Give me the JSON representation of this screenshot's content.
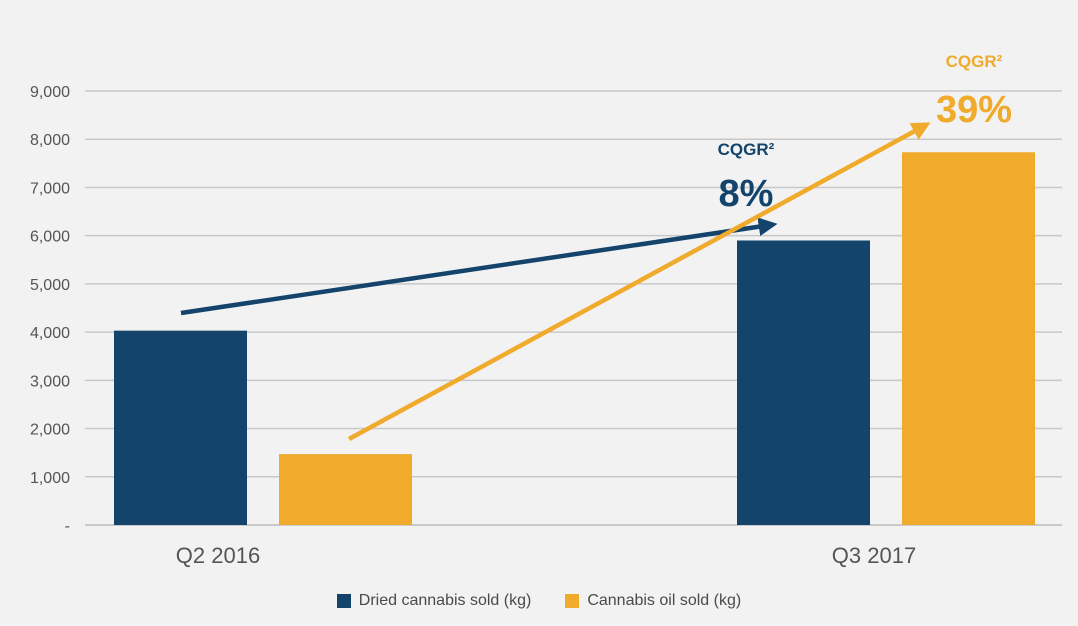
{
  "chart_data": {
    "type": "bar",
    "categories": [
      "Q2 2016",
      "Q3 2017"
    ],
    "series": [
      {
        "name": "Dried cannabis sold (kg)",
        "values": [
          4030,
          5900
        ],
        "color": "#14446b"
      },
      {
        "name": "Cannabis oil sold (kg)",
        "values": [
          1470,
          7730
        ],
        "color": "#f0aa2c"
      }
    ],
    "y_ticks": [
      "-",
      "1,000",
      "2,000",
      "3,000",
      "4,000",
      "5,000",
      "6,000",
      "7,000",
      "8,000",
      "9,000"
    ],
    "ylim": [
      0,
      9000
    ],
    "grid": true,
    "legend_position": "bottom",
    "annotations": [
      {
        "series": "Dried cannabis sold (kg)",
        "label": "CQGR²",
        "value": "8%",
        "color": "#14446b"
      },
      {
        "series": "Cannabis oil sold (kg)",
        "label": "CQGR²",
        "value": "39%",
        "color": "#f0aa2c"
      }
    ]
  }
}
